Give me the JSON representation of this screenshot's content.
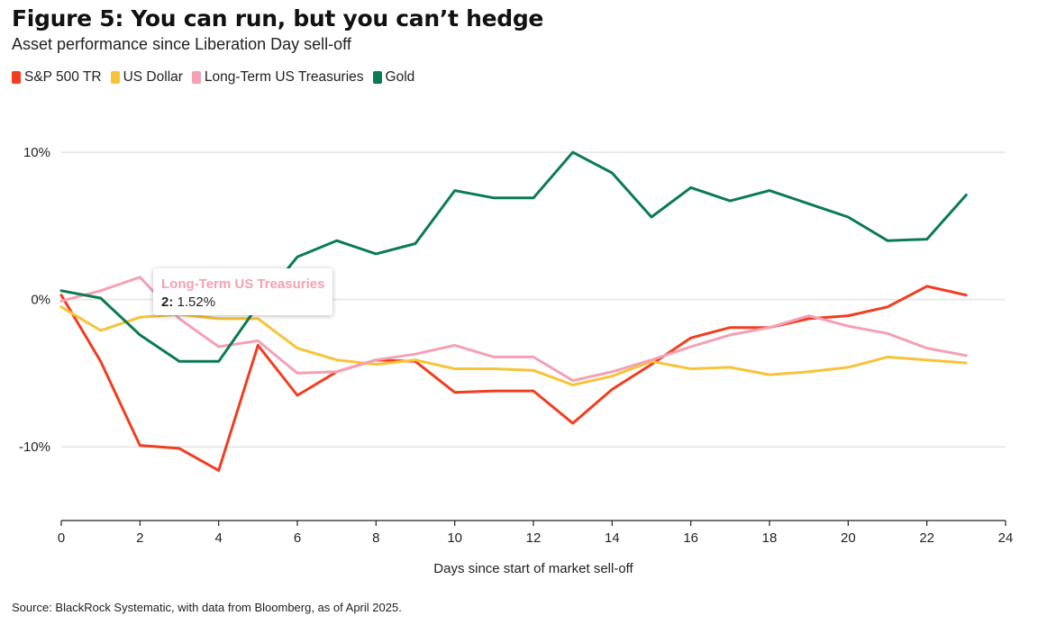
{
  "header": {
    "title": "Figure 5: You can run, but you can’t hedge",
    "subtitle": "Asset performance since Liberation Day sell-off"
  },
  "source": "Source: BlackRock Systematic, with data from Bloomberg, as of April 2025.",
  "tooltip": {
    "series": "Long-Term US Treasuries",
    "x": "2:",
    "value": "1.52%",
    "color": "#f4a0b5"
  },
  "chart_data": {
    "type": "line",
    "xlabel": "Days since start of market sell-off",
    "ylabel": "",
    "xlim": [
      0,
      24
    ],
    "ylim": [
      -15,
      13
    ],
    "x_ticks": [
      0,
      2,
      4,
      6,
      8,
      10,
      12,
      14,
      16,
      18,
      20,
      22,
      24
    ],
    "y_ticks": [
      10,
      0,
      -10
    ],
    "y_tick_labels": [
      "10%",
      "0%",
      "-10%"
    ],
    "grid": "horizontal",
    "legend_position": "top-left",
    "x": [
      0,
      1,
      2,
      3,
      4,
      5,
      6,
      7,
      8,
      9,
      10,
      11,
      12,
      13,
      14,
      15,
      16,
      17,
      18,
      19,
      20,
      21,
      22,
      23
    ],
    "series": [
      {
        "name": "S&P 500 TR",
        "color": "#f23d1f",
        "values": [
          0.3,
          -4.2,
          -9.9,
          -10.1,
          -11.6,
          -3.1,
          -6.5,
          -4.9,
          -4.1,
          -4.2,
          -6.3,
          -6.2,
          -6.2,
          -8.4,
          -6.1,
          -4.4,
          -2.6,
          -1.9,
          -1.9,
          -1.3,
          -1.1,
          -0.5,
          0.9,
          0.3
        ]
      },
      {
        "name": "US Dollar",
        "color": "#f7c338",
        "values": [
          -0.5,
          -2.1,
          -1.2,
          -1.0,
          -1.3,
          -1.3,
          -3.3,
          -4.1,
          -4.4,
          -4.1,
          -4.7,
          -4.7,
          -4.8,
          -5.8,
          -5.2,
          -4.2,
          -4.7,
          -4.6,
          -5.1,
          -4.9,
          -4.6,
          -3.9,
          -4.1,
          -4.3
        ]
      },
      {
        "name": "Long-Term US Treasuries",
        "color": "#f4a0b5",
        "values": [
          -0.1,
          0.6,
          1.52,
          -1.3,
          -3.2,
          -2.8,
          -5.0,
          -4.9,
          -4.1,
          -3.7,
          -3.1,
          -3.9,
          -3.9,
          -5.5,
          -4.9,
          -4.1,
          -3.2,
          -2.4,
          -1.9,
          -1.1,
          -1.8,
          -2.3,
          -3.3,
          -3.8
        ]
      },
      {
        "name": "Gold",
        "color": "#0a7b52",
        "values": [
          0.6,
          0.1,
          -2.4,
          -4.2,
          -4.2,
          -0.4,
          2.9,
          4.0,
          3.1,
          3.8,
          7.4,
          6.9,
          6.9,
          10.0,
          8.6,
          5.6,
          7.6,
          6.7,
          7.4,
          6.5,
          5.6,
          4.0,
          4.1,
          7.1
        ]
      }
    ]
  }
}
